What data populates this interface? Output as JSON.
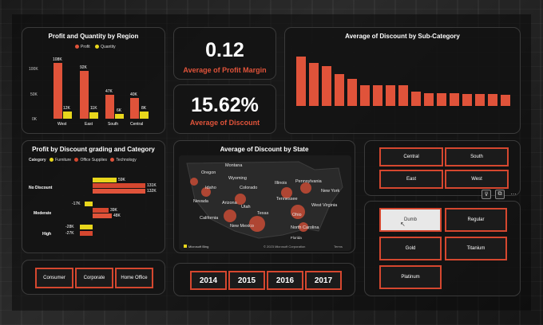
{
  "profit_qty": {
    "title": "Profit and Quantity by Region",
    "legend": [
      "Profit",
      "Quantity"
    ],
    "colors": {
      "profit": "#e0533a",
      "quantity": "#e8d61c"
    },
    "y_ticks": [
      "100K",
      "50K",
      "0K"
    ],
    "regions": [
      {
        "name": "West",
        "profit": "108K",
        "quantity": "12K"
      },
      {
        "name": "East",
        "profit": "92K",
        "quantity": "11K"
      },
      {
        "name": "South",
        "profit": "47K",
        "quantity": "6K"
      },
      {
        "name": "Central",
        "profit": "40K",
        "quantity": "8K"
      }
    ]
  },
  "kpi": {
    "margin_value": "0.12",
    "margin_label": "Average of Profit Margin",
    "discount_value": "15.62%",
    "discount_label": "Average of Discount"
  },
  "subcat": {
    "title": "Average of Discount by Sub-Category",
    "color": "#e0533a"
  },
  "grading": {
    "title": "Profit by Discount grading and Category",
    "legend_label": "Category",
    "legend": [
      "Furniture",
      "Office Supplies",
      "Technology"
    ],
    "colors": {
      "furniture": "#e8d61c",
      "office": "#d5472f",
      "technology": "#e0533a"
    },
    "rows": [
      {
        "label": "No Discount",
        "values": [
          "59K",
          "131K",
          "132K"
        ]
      },
      {
        "label": "Moderate",
        "values": [
          "-17K",
          "39K",
          "48K"
        ]
      },
      {
        "label": "High",
        "values": [
          "-28K",
          "-27K"
        ]
      }
    ]
  },
  "state_map": {
    "title": "Average of Discount by State",
    "states": [
      "Oregon",
      "Montana",
      "Wyoming",
      "Idaho",
      "Colorado",
      "Nevada",
      "Arizona",
      "California",
      "Utah",
      "Texas",
      "New Mexico",
      "Illinois",
      "Pennsylvania",
      "New York",
      "Tennessee",
      "West Virginia",
      "Ohio",
      "North Carolina",
      "Florida"
    ],
    "attribution_left": "Microsoft Bing",
    "attribution_right": "© 2023 Microsoft Corporation",
    "terms": "Terms"
  },
  "segment": [
    "Consumer",
    "Corporate",
    "Home Office"
  ],
  "years": [
    "2014",
    "2015",
    "2016",
    "2017"
  ],
  "region_slicer": [
    "Central",
    "South",
    "East",
    "West"
  ],
  "grade_slicer": [
    "Dumb",
    "Regular",
    "Gold",
    "Titanium",
    "Platinum"
  ]
}
